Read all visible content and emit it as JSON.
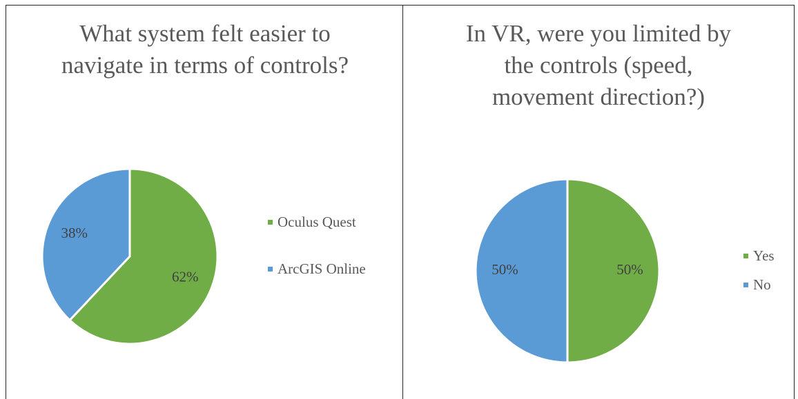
{
  "chart_data": [
    {
      "type": "pie",
      "title": "What system felt easier to navigate in terms of controls?",
      "categories": [
        "Oculus Quest",
        "ArcGIS Online"
      ],
      "values": [
        62,
        38
      ],
      "value_labels": [
        "62%",
        "38%"
      ],
      "colors": [
        "#70ad47",
        "#5b9bd5"
      ],
      "legend": "right"
    },
    {
      "type": "pie",
      "title": "In VR, were you limited by the controls (speed, movement direction?)",
      "categories": [
        "Yes",
        "No"
      ],
      "values": [
        50,
        50
      ],
      "value_labels": [
        "50%",
        "50%"
      ],
      "colors": [
        "#70ad47",
        "#5b9bd5"
      ],
      "legend": "right"
    }
  ]
}
